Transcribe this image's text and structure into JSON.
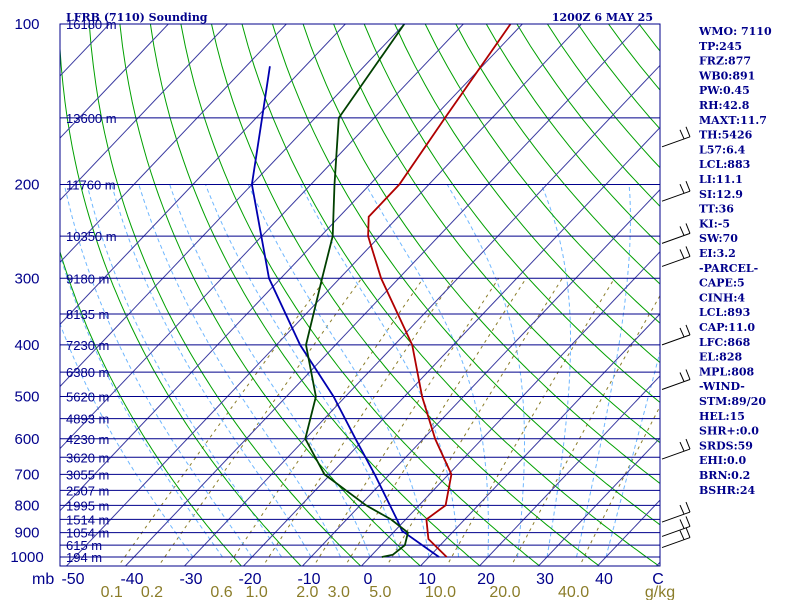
{
  "header": {
    "left": "LFRB (7110) Sounding",
    "right": "1200Z  6 MAY 25"
  },
  "stats": [
    "WMO: 7110",
    "TP:245",
    "FRZ:877",
    "WB0:891",
    "PW:0.45",
    "RH:42.8",
    "MAXT:11.7",
    "TH:5426",
    "L57:6.4",
    "LCL:883",
    "LI:11.1",
    "SI:12.9",
    "TT:36",
    "KI:-5",
    "SW:70",
    "EI:3.2",
    "-PARCEL-",
    "CAPE:5",
    "CINH:4",
    "LCL:893",
    "CAP:11.0",
    "LFC:868",
    "EL:828",
    "MPL:808",
    "-WIND-",
    "STM:89/20",
    "HEL:15",
    "SHR+:0.0",
    "SRDS:59",
    "EHI:0.0",
    "BRN:0.2",
    "BSHR:24"
  ],
  "colors": {
    "frame": "#00008b",
    "isotherm": "#3a3aa0",
    "dry_adiabat": "#00a000",
    "moist_adiabat": "#6fb7ff",
    "mixing_ratio": "#8b7d2a",
    "temperature": "#b00000",
    "dewpoint": "#004000",
    "parcel": "#0000b0"
  },
  "chart_data": {
    "type": "skew-t",
    "pressure_unit_label": "mb",
    "pressure_levels": [
      100,
      200,
      300,
      400,
      500,
      600,
      700,
      800,
      900,
      1000
    ],
    "pressure_tick_labels": [
      "100",
      "200",
      "300",
      "400",
      "500",
      "600",
      "700",
      "800",
      "900",
      "1000"
    ],
    "temperature_ticks": [
      -50,
      -40,
      -30,
      -20,
      -10,
      0,
      10,
      20,
      30,
      40
    ],
    "temperature_tick_labels": [
      "-50",
      "-40",
      "-30",
      "-20",
      "-10",
      "0",
      "10",
      "20",
      "30",
      "40"
    ],
    "temperature_unit_label": "C",
    "mixing_ratio_ticks": [
      0.1,
      0.2,
      0.6,
      1.0,
      2.0,
      3.0,
      5.0,
      10.0,
      20.0,
      40.0
    ],
    "mixing_ratio_tick_labels": [
      "0.1",
      "0.2",
      "0.6",
      "1.0",
      "2.0",
      "3.0",
      "5.0",
      "10.0",
      "20.0",
      "40.0"
    ],
    "mixing_ratio_unit_label": "g/kg",
    "heights": [
      {
        "p": 100,
        "label": "16180 m"
      },
      {
        "p": 150,
        "label": "13600 m"
      },
      {
        "p": 200,
        "label": "11760 m"
      },
      {
        "p": 250,
        "label": "10350 m"
      },
      {
        "p": 300,
        "label": "9180 m"
      },
      {
        "p": 350,
        "label": "8135 m"
      },
      {
        "p": 400,
        "label": "7230 m"
      },
      {
        "p": 450,
        "label": "6380 m"
      },
      {
        "p": 500,
        "label": "5620 m"
      },
      {
        "p": 550,
        "label": "4893 m"
      },
      {
        "p": 600,
        "label": "4230 m"
      },
      {
        "p": 650,
        "label": "3620 m"
      },
      {
        "p": 700,
        "label": "3055 m"
      },
      {
        "p": 750,
        "label": "2507 m"
      },
      {
        "p": 800,
        "label": "1995 m"
      },
      {
        "p": 850,
        "label": "1514 m"
      },
      {
        "p": 900,
        "label": "1054 m"
      },
      {
        "p": 950,
        "label": "615 m"
      },
      {
        "p": 1000,
        "label": "194 m"
      }
    ],
    "temperature": [
      {
        "p": 1000,
        "t": 13.0
      },
      {
        "p": 925,
        "t": 7.0
      },
      {
        "p": 850,
        "t": 3.5
      },
      {
        "p": 800,
        "t": 4.5
      },
      {
        "p": 700,
        "t": 0.5
      },
      {
        "p": 600,
        "t": -8.0
      },
      {
        "p": 500,
        "t": -17.0
      },
      {
        "p": 400,
        "t": -27.0
      },
      {
        "p": 300,
        "t": -43.0
      },
      {
        "p": 250,
        "t": -52.0
      },
      {
        "p": 230,
        "t": -55.0
      },
      {
        "p": 200,
        "t": -55.0
      },
      {
        "p": 150,
        "t": -58.0
      },
      {
        "p": 100,
        "t": -62.0
      }
    ],
    "dewpoint": [
      {
        "p": 1000,
        "t": 2.0
      },
      {
        "p": 990,
        "t": 3.5
      },
      {
        "p": 950,
        "t": 4.0
      },
      {
        "p": 900,
        "t": 2.5
      },
      {
        "p": 850,
        "t": -2.5
      },
      {
        "p": 800,
        "t": -9.0
      },
      {
        "p": 700,
        "t": -21.0
      },
      {
        "p": 600,
        "t": -30.0
      },
      {
        "p": 500,
        "t": -35.0
      },
      {
        "p": 400,
        "t": -45.0
      },
      {
        "p": 300,
        "t": -53.0
      },
      {
        "p": 250,
        "t": -58.0
      },
      {
        "p": 200,
        "t": -66.0
      },
      {
        "p": 150,
        "t": -76.0
      },
      {
        "p": 100,
        "t": -80.0
      }
    ],
    "parcel": [
      {
        "p": 1000,
        "t": 11.7
      },
      {
        "p": 893,
        "t": 1.2
      },
      {
        "p": 850,
        "t": -1.5
      },
      {
        "p": 700,
        "t": -12.5
      },
      {
        "p": 600,
        "t": -21.5
      },
      {
        "p": 500,
        "t": -32.0
      },
      {
        "p": 400,
        "t": -46.0
      },
      {
        "p": 300,
        "t": -62.0
      },
      {
        "p": 200,
        "t": -80.0
      },
      {
        "p": 150,
        "t": -89.0
      },
      {
        "p": 120,
        "t": -96.0
      }
    ],
    "winds": [
      {
        "p": 170
      },
      {
        "p": 215
      },
      {
        "p": 258
      },
      {
        "p": 285
      },
      {
        "p": 400
      },
      {
        "p": 485
      },
      {
        "p": 655
      },
      {
        "p": 860
      },
      {
        "p": 915
      },
      {
        "p": 960
      }
    ]
  }
}
